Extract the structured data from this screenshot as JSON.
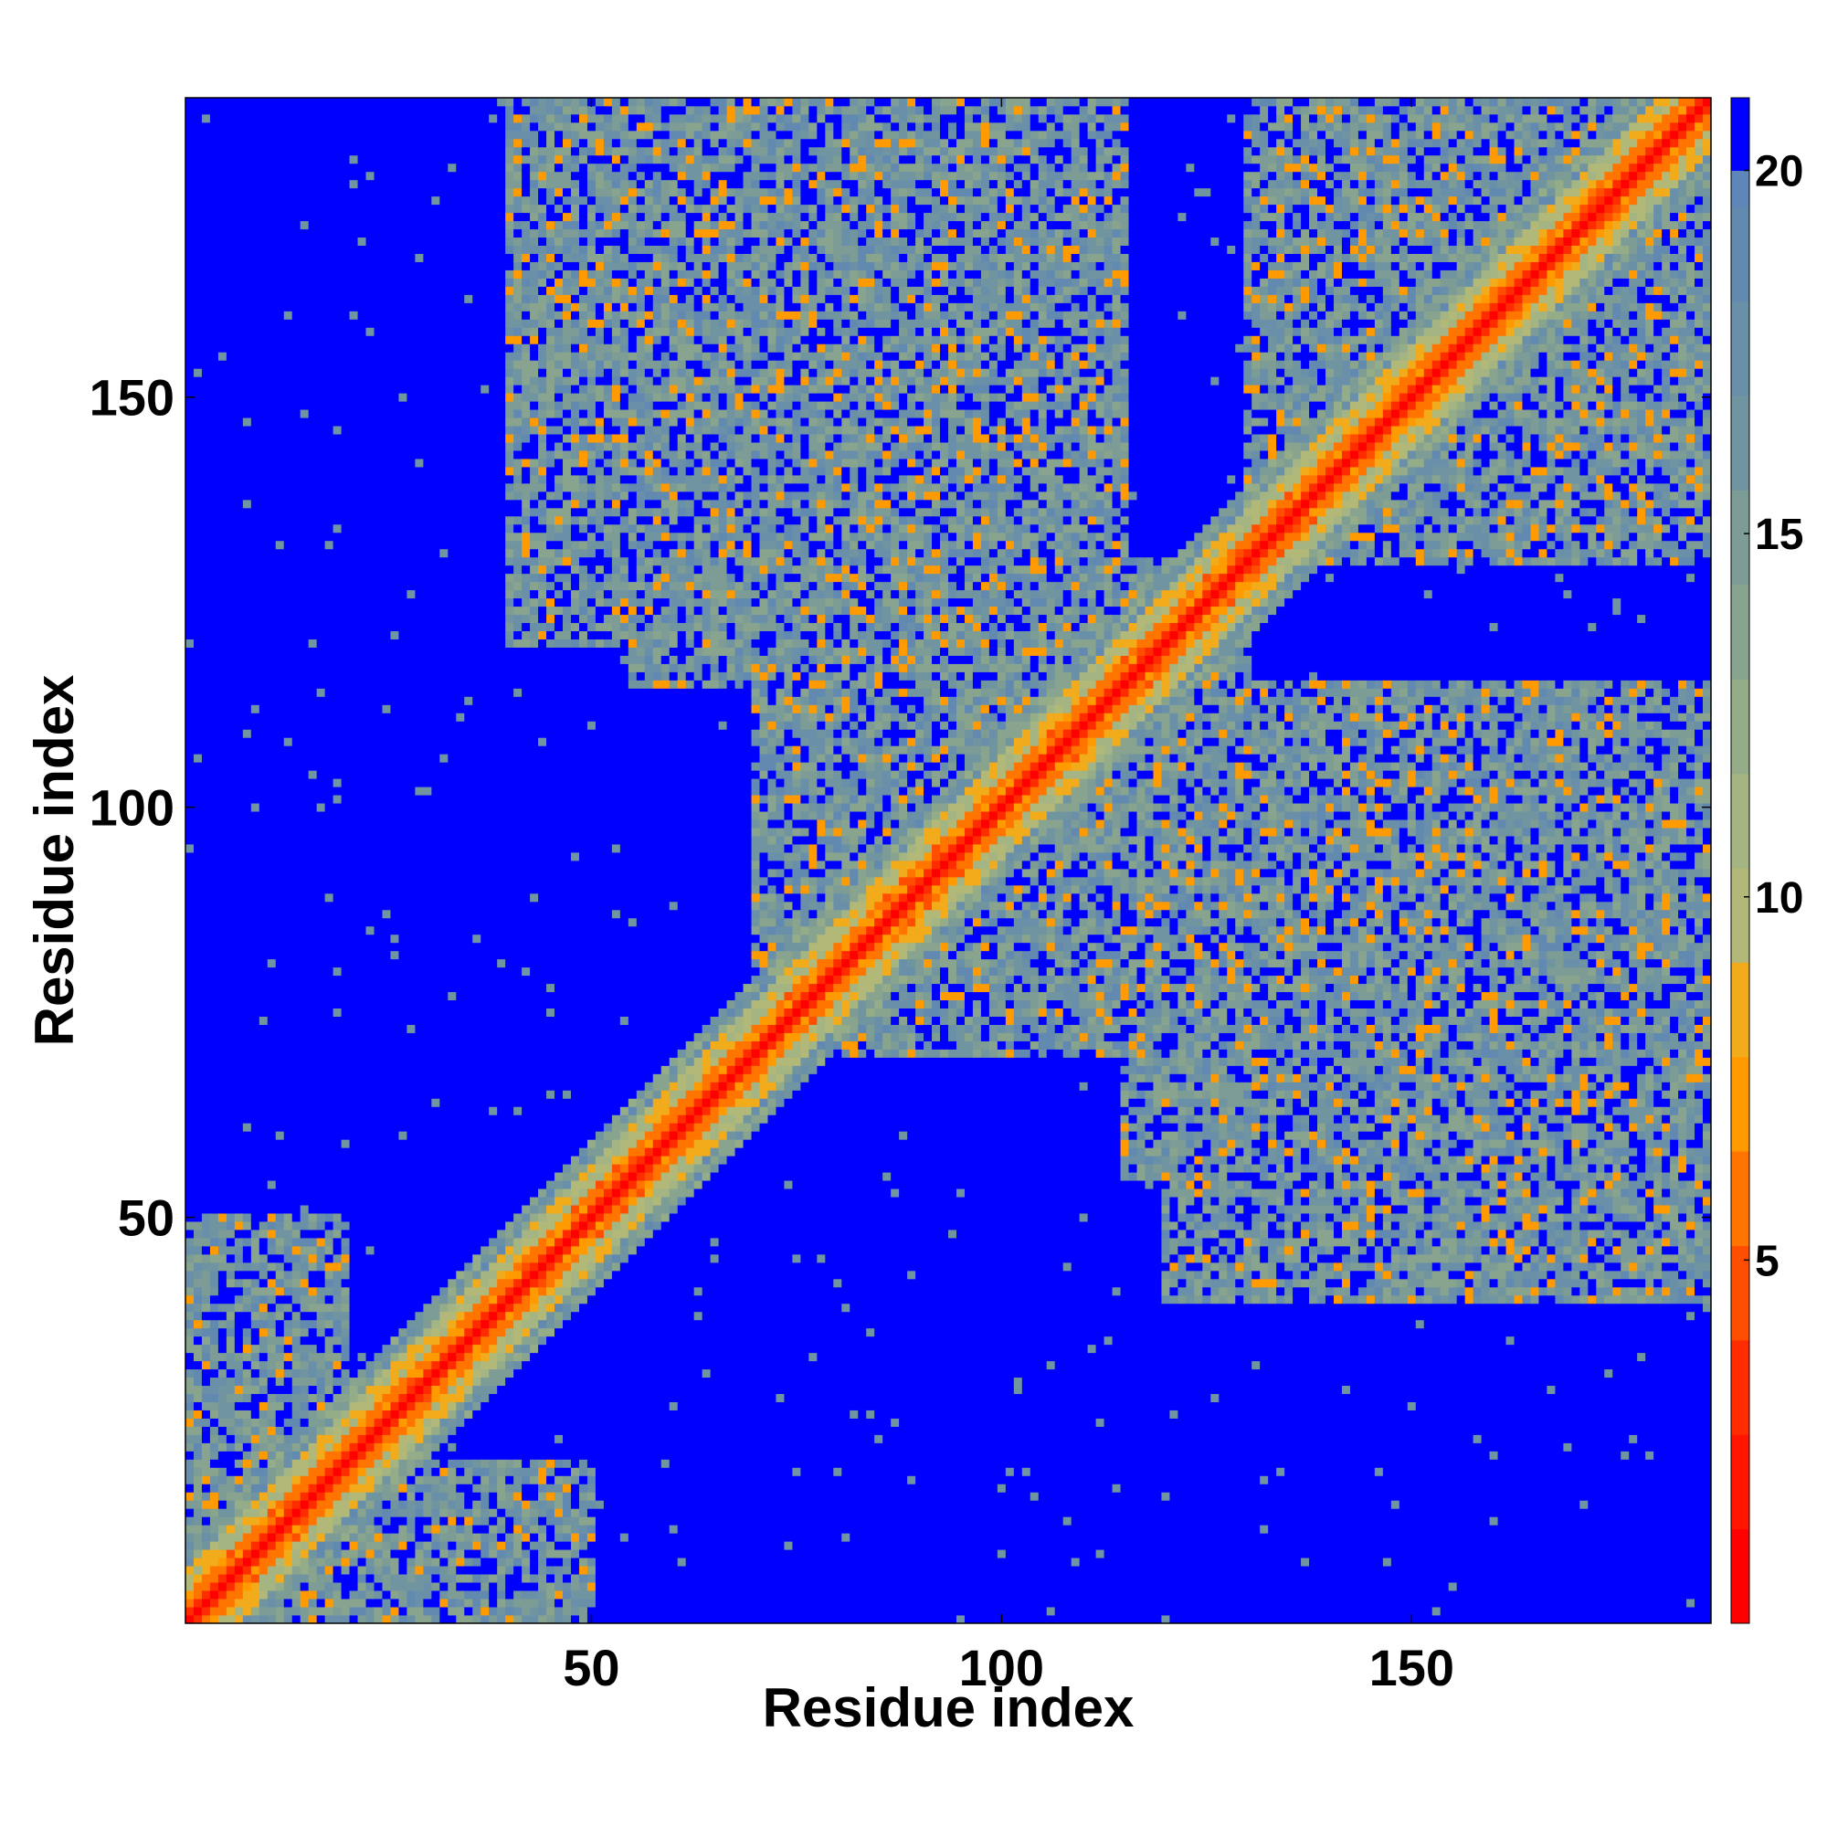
{
  "chart_data": {
    "type": "heatmap",
    "title": "",
    "xlabel": "Residue index",
    "ylabel": "Residue index",
    "n_residues": 186,
    "xlim": [
      0.5,
      186.5
    ],
    "ylim": [
      0.5,
      186.5
    ],
    "x_ticks": [
      50,
      100,
      150
    ],
    "y_ticks": [
      50,
      100,
      150
    ],
    "x_tick_labels": [
      "50",
      "100",
      "150"
    ],
    "y_tick_labels": [
      "50",
      "100",
      "150"
    ],
    "colorbar": {
      "range": [
        0,
        21
      ],
      "ticks": [
        5,
        10,
        15,
        20
      ],
      "tick_labels": [
        "5",
        "10",
        "15",
        "20"
      ],
      "levels": [
        {
          "max": 1.3,
          "color": "#ff0000"
        },
        {
          "max": 2.6,
          "color": "#ff1500"
        },
        {
          "max": 3.9,
          "color": "#ff2c00"
        },
        {
          "max": 5.2,
          "color": "#ff4e00"
        },
        {
          "max": 6.5,
          "color": "#ff7500"
        },
        {
          "max": 7.8,
          "color": "#ff9a00"
        },
        {
          "max": 9.1,
          "color": "#f2ab1a"
        },
        {
          "max": 10.4,
          "color": "#b2b978"
        },
        {
          "max": 11.7,
          "color": "#a4b482"
        },
        {
          "max": 13.0,
          "color": "#95ac89"
        },
        {
          "max": 14.3,
          "color": "#88a48f"
        },
        {
          "max": 15.6,
          "color": "#7c9c95"
        },
        {
          "max": 16.9,
          "color": "#7195a0"
        },
        {
          "max": 18.2,
          "color": "#6a90a9"
        },
        {
          "max": 19.5,
          "color": "#6289b0"
        },
        {
          "max": 20.0,
          "color": "#5e86b8"
        },
        {
          "max": 21.0,
          "color": "#0000ff"
        }
      ]
    },
    "contact_regions": [
      {
        "i": [
          1,
          186
        ],
        "j": [
          1,
          186
        ],
        "band": "diagonal",
        "note": "distance rises with |i-j|"
      },
      {
        "i": [
          55,
          115
        ],
        "j": [
          115,
          186
        ]
      },
      {
        "i": [
          115,
          186
        ],
        "j": [
          55,
          115
        ]
      },
      {
        "i": [
          1,
          20
        ],
        "j": [
          1,
          50
        ]
      },
      {
        "i": [
          1,
          50
        ],
        "j": [
          1,
          20
        ]
      },
      {
        "i": [
          20,
          50
        ],
        "j": [
          3,
          20
        ]
      },
      {
        "i": [
          75,
          130
        ],
        "j": [
          70,
          130
        ]
      },
      {
        "i": [
          130,
          186
        ],
        "j": [
          130,
          186
        ]
      },
      {
        "i": [
          120,
          186
        ],
        "j": [
          40,
          90
        ]
      },
      {
        "i": [
          40,
          90
        ],
        "j": [
          120,
          186
        ]
      }
    ],
    "grid": false,
    "legend": "none"
  },
  "colors": {
    "far": "#0000ff",
    "near": "#ff0000",
    "axis": "#000000",
    "background": "#ffffff"
  }
}
